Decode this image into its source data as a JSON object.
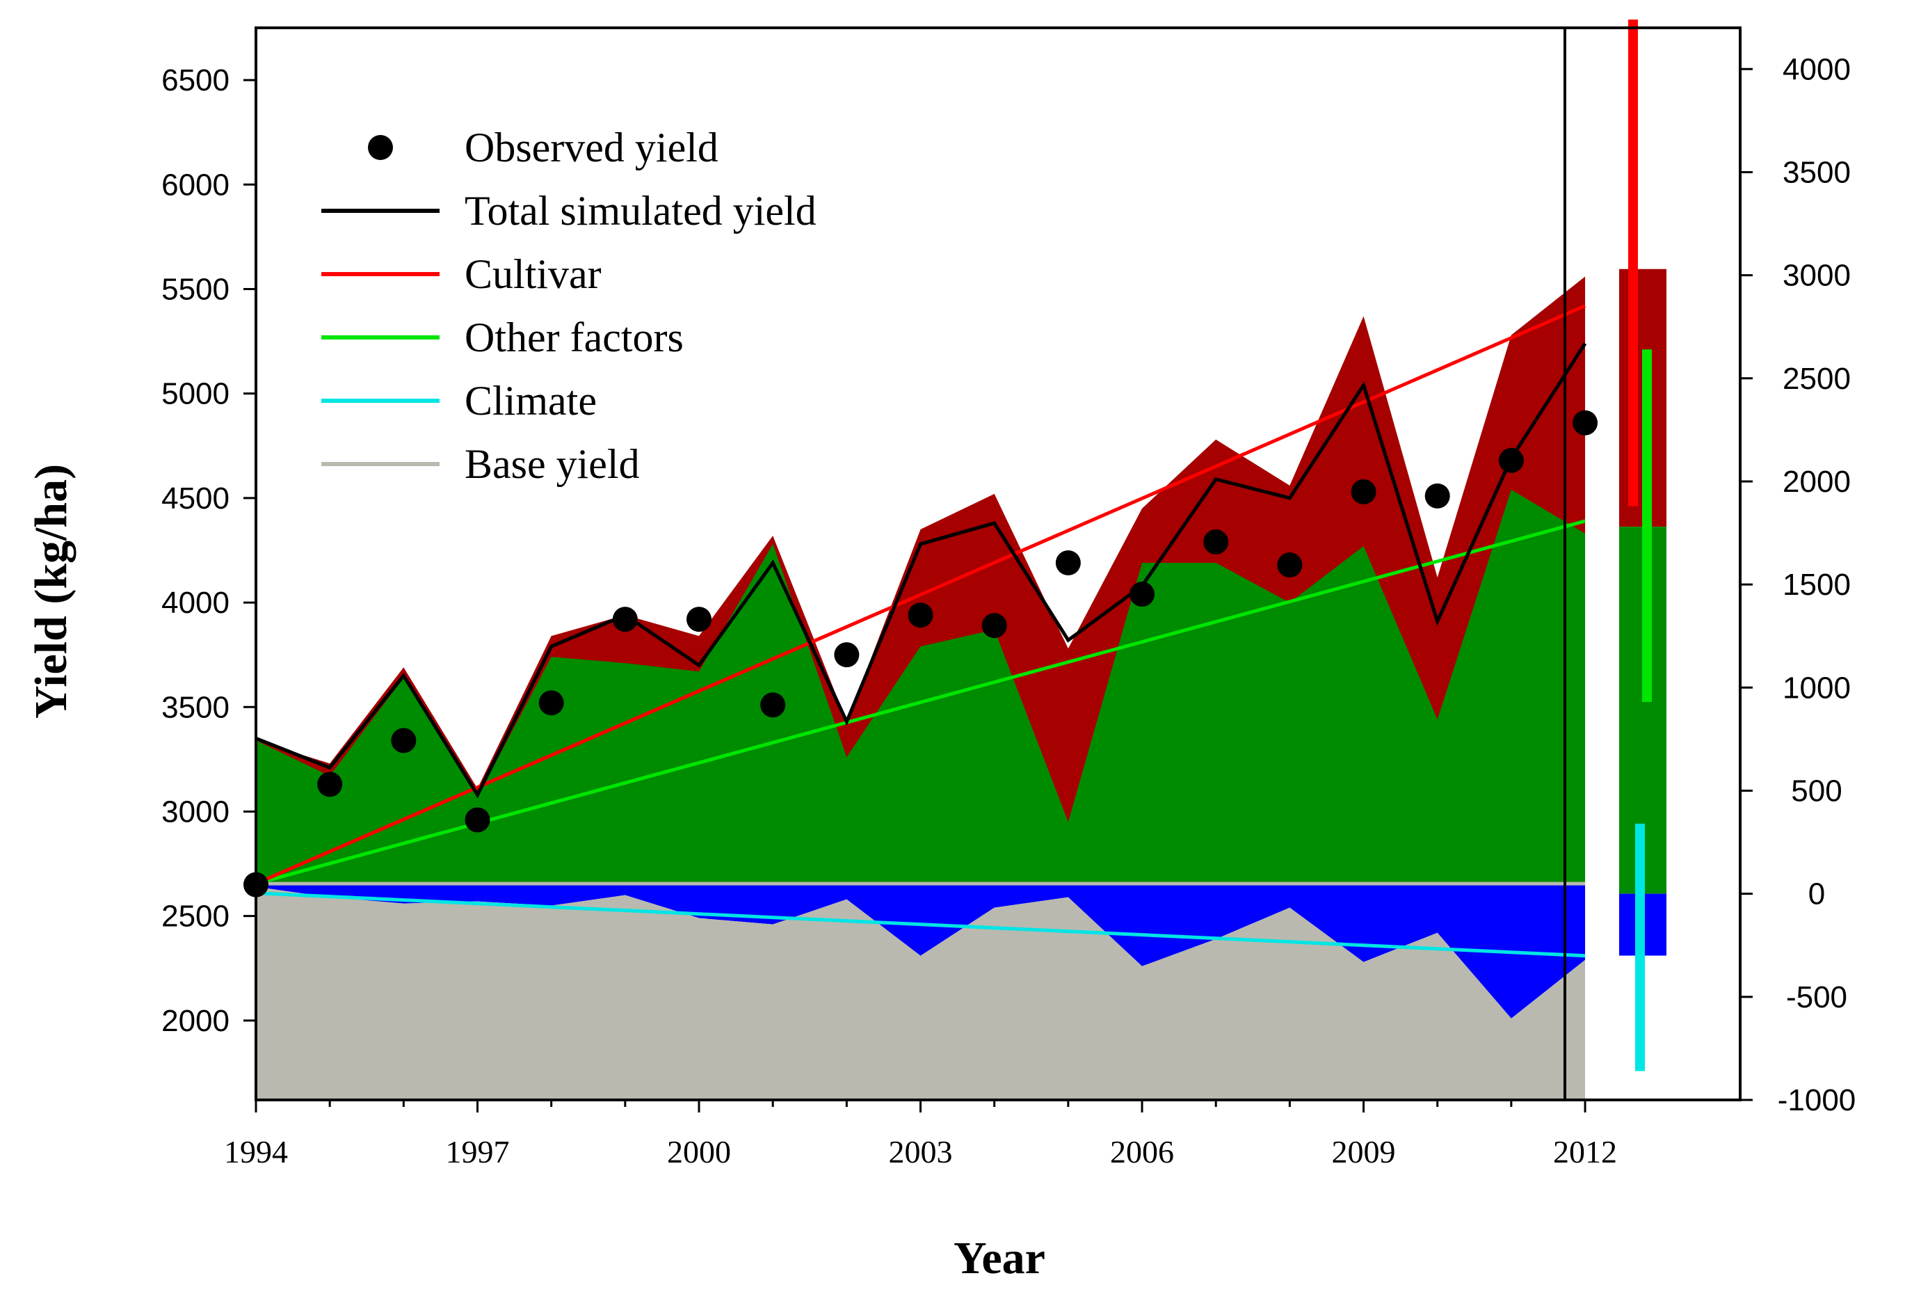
{
  "chart_data": {
    "type": "area",
    "xlabel": "Year",
    "ylabel": "Yield (kg/ha)",
    "x": [
      1994,
      1995,
      1996,
      1997,
      1998,
      1999,
      2000,
      2001,
      2002,
      2003,
      2004,
      2005,
      2006,
      2007,
      2008,
      2009,
      2010,
      2011,
      2012
    ],
    "x_ticks": [
      "1994",
      "1997",
      "2000",
      "2003",
      "2006",
      "2009",
      "2012"
    ],
    "xlim": [
      1994,
      2014.1
    ],
    "ylim": [
      1620,
      6750
    ],
    "y_ticks": [
      "2000",
      "2500",
      "3000",
      "3500",
      "4000",
      "4500",
      "5000",
      "5500",
      "6000",
      "6500"
    ],
    "baseline": 2650,
    "grid": false,
    "legend_position": "top-left",
    "legend": [
      "Observed yield",
      "Total simulated yield",
      "Cultivar",
      "Other factors",
      "Climate",
      "Base yield"
    ],
    "colors": {
      "cultivar_area": "#a60000",
      "other_area": "#008c00",
      "climate_area": "#0000ff",
      "base_area": "#b9b9af",
      "cultivar_line": "#ff0000",
      "other_line": "#00e600",
      "climate_line": "#00e5e5",
      "base_line": "#b9b9af",
      "total_line": "#000000",
      "observed": "#000000"
    },
    "series": [
      {
        "name": "Observed yield",
        "kind": "scatter",
        "values": [
          2650,
          3130,
          3340,
          2960,
          3520,
          3920,
          3920,
          3510,
          3750,
          3940,
          3890,
          4190,
          4040,
          4290,
          4180,
          4530,
          4510,
          4680,
          4860
        ]
      },
      {
        "name": "Total simulated yield",
        "kind": "line",
        "values": [
          3350,
          3210,
          3650,
          3080,
          3790,
          3940,
          3700,
          4190,
          3430,
          4280,
          4380,
          3820,
          4080,
          4590,
          4500,
          5040,
          3910,
          4690,
          5240
        ]
      },
      {
        "name": "Cultivar",
        "kind": "area",
        "layer": "top",
        "values": [
          3340,
          3230,
          3690,
          3110,
          3840,
          3940,
          3840,
          4320,
          3430,
          4350,
          4520,
          3780,
          4450,
          4780,
          4560,
          5370,
          4120,
          5280,
          5560
        ]
      },
      {
        "name": "Other factors",
        "kind": "area",
        "layer": "middle",
        "values": [
          3340,
          3170,
          3640,
          3070,
          3740,
          3710,
          3670,
          4280,
          3260,
          3790,
          3870,
          2950,
          4190,
          4190,
          4000,
          4270,
          3440,
          4540,
          4330
        ]
      },
      {
        "name": "Climate",
        "kind": "area",
        "layer": "below-baseline",
        "values": [
          2640,
          2590,
          2560,
          2570,
          2550,
          2600,
          2490,
          2460,
          2580,
          2310,
          2540,
          2590,
          2260,
          2390,
          2540,
          2280,
          2420,
          2010,
          2290
        ]
      },
      {
        "name": "Base yield",
        "kind": "area",
        "layer": "bottom",
        "values": [
          2640,
          2590,
          2560,
          2570,
          2550,
          2600,
          2490,
          2460,
          2580,
          2310,
          2540,
          2590,
          2260,
          2390,
          2540,
          2280,
          2420,
          2010,
          2290
        ]
      },
      {
        "name": "Cultivar trend",
        "kind": "trendline",
        "from": 2655,
        "to": 5420
      },
      {
        "name": "Other factors trend",
        "kind": "trendline",
        "from": 2655,
        "to": 4390
      },
      {
        "name": "Climate trend",
        "kind": "trendline",
        "from": 2610,
        "to": 2310
      },
      {
        "name": "Base yield level",
        "kind": "trendline",
        "from": 2655,
        "to": 2655
      }
    ],
    "contribution_panel": {
      "y2_ticks": [
        "-1000",
        "-500",
        "0",
        "500",
        "1000",
        "1500",
        "2000",
        "2500",
        "3000",
        "3500",
        "4000"
      ],
      "y2lim": [
        -1000,
        4200
      ],
      "bars": [
        {
          "name": "Cultivar",
          "from": 1780,
          "to": 3030,
          "color": "#a60000"
        },
        {
          "name": "Other factors",
          "from": 0,
          "to": 1780,
          "color": "#008c00"
        },
        {
          "name": "Climate",
          "from": -300,
          "to": 0,
          "color": "#0000ff"
        }
      ],
      "ranges": [
        {
          "name": "Cultivar",
          "low": 1880,
          "high": 4240,
          "color": "#ff0000"
        },
        {
          "name": "Other factors",
          "low": 930,
          "high": 2640,
          "color": "#00e600"
        },
        {
          "name": "Climate",
          "low": -860,
          "high": 340,
          "color": "#00e5e5"
        }
      ]
    }
  }
}
